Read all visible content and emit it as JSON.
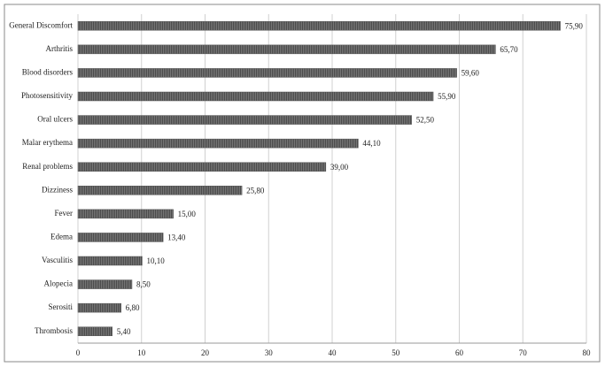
{
  "chart_data": {
    "type": "bar",
    "orientation": "horizontal",
    "categories": [
      "General Discomfort",
      "Arthritis",
      "Blood disorders",
      "Photosensitivity",
      "Oral ulcers",
      "Malar erythema",
      "Renal problems",
      "Dizziness",
      "Fever",
      "Edema",
      "Vasculitis",
      "Alopecia",
      "Serositi",
      "Thrombosis"
    ],
    "values": [
      75.9,
      65.7,
      59.6,
      55.9,
      52.5,
      44.1,
      39.0,
      25.8,
      15.0,
      13.4,
      10.1,
      8.5,
      6.8,
      5.4
    ],
    "value_labels": [
      "75,90",
      "65,70",
      "59,60",
      "55,90",
      "52,50",
      "44,10",
      "39,00",
      "25,80",
      "15,00",
      "13,40",
      "10,10",
      "8,50",
      "6,80",
      "5,40"
    ],
    "color": "#555555",
    "xlim": [
      0,
      80
    ],
    "xticks": [
      0,
      10,
      20,
      30,
      40,
      50,
      60,
      70,
      80
    ],
    "grid": true
  }
}
